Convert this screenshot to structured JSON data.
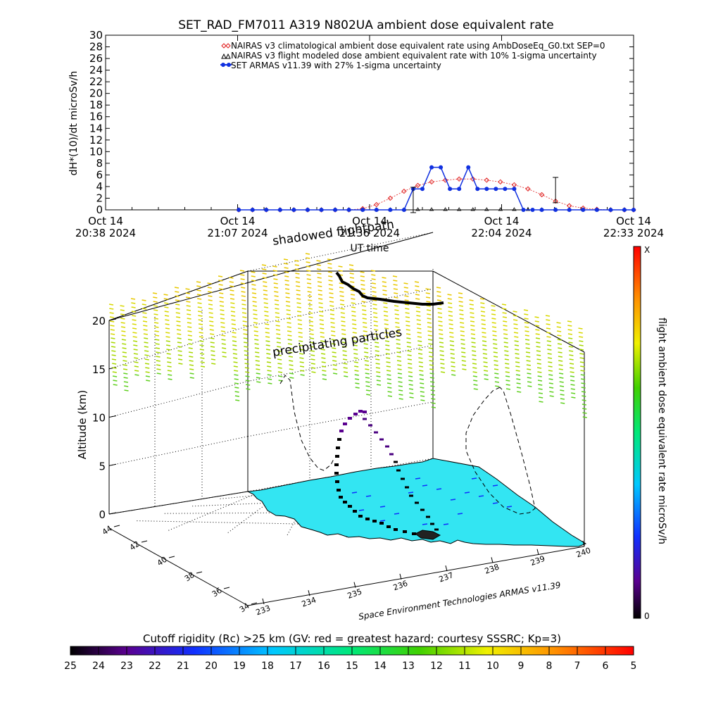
{
  "chart_data": [
    {
      "type": "line",
      "title": "SET_RAD_FM7011  A319 N802UA ambient dose equivalent rate",
      "xlabel": "UT time",
      "ylabel": "dH*(10)/dt microSv/h",
      "ylim": [
        0,
        30
      ],
      "y_ticks": [
        "0",
        "2",
        "4",
        "6",
        "8",
        "10",
        "12",
        "14",
        "16",
        "18",
        "20",
        "22",
        "24",
        "26",
        "28",
        "30"
      ],
      "x_tick_labels": [
        {
          "date": "Oct 14",
          "time": "20:38 2024"
        },
        {
          "date": "Oct 14",
          "time": "21:07 2024"
        },
        {
          "date": "Oct 14",
          "time": "21:36 2024"
        },
        {
          "date": "Oct 14",
          "time": "22:04 2024"
        },
        {
          "date": "Oct 14",
          "time": "22:33 2024"
        }
      ],
      "legend_position": "top-center",
      "series": [
        {
          "name": "NAIRAS v3 climatological ambient dose equivalent rate using AmbDoseEq_G0.txt SEP=0",
          "color": "#e02020",
          "marker": "diamond",
          "x": [
            "21:07",
            "21:10",
            "21:13",
            "21:16",
            "21:19",
            "21:22",
            "21:25",
            "21:28",
            "21:31",
            "21:34",
            "21:37",
            "21:40",
            "21:43",
            "21:46",
            "21:49",
            "21:52",
            "21:55",
            "21:58",
            "22:01",
            "22:04",
            "22:07",
            "22:10",
            "22:13",
            "22:16",
            "22:19",
            "22:22",
            "22:25",
            "22:28",
            "22:31",
            "22:33"
          ],
          "values": [
            0,
            0,
            0,
            0,
            0,
            0,
            0,
            0,
            0,
            0.2,
            0.9,
            2.0,
            3.2,
            4.2,
            4.8,
            5.1,
            5.3,
            5.3,
            5.1,
            4.8,
            4.3,
            3.6,
            2.6,
            1.5,
            0.7,
            0.3,
            0.1,
            0,
            0,
            0
          ]
        },
        {
          "name": "NAIRAS v3 flight modeled dose ambient equivalent rate with 10% 1-sigma uncertainty",
          "color": "#000000",
          "marker": "triangle",
          "x": [
            "21:07",
            "21:10",
            "21:13",
            "21:16",
            "21:19",
            "21:22",
            "21:25",
            "21:28",
            "21:31",
            "21:34",
            "21:37",
            "21:40",
            "21:43",
            "21:46",
            "21:49",
            "21:52",
            "21:55",
            "21:58",
            "22:01",
            "22:04",
            "22:07",
            "22:10",
            "22:13",
            "22:16",
            "22:19",
            "22:22",
            "22:25",
            "22:28",
            "22:31",
            "22:33"
          ],
          "values": [
            0,
            0,
            0,
            0,
            0,
            0,
            0,
            0,
            0,
            0,
            0,
            0,
            0,
            0,
            0,
            0,
            0,
            0,
            0,
            0,
            0,
            0,
            0,
            0,
            0,
            0,
            0,
            0,
            0,
            0
          ]
        },
        {
          "name": "SET ARMAS v11.39 with 27% 1-sigma uncertainty",
          "color": "#1030e0",
          "marker": "circle",
          "x": [
            "21:07",
            "21:10",
            "21:13",
            "21:16",
            "21:19",
            "21:22",
            "21:25",
            "21:28",
            "21:31",
            "21:34",
            "21:37",
            "21:40",
            "21:43",
            "21:45",
            "21:47",
            "21:49",
            "21:51",
            "21:53",
            "21:55",
            "21:57",
            "21:59",
            "22:01",
            "22:03",
            "22:05",
            "22:07",
            "22:09",
            "22:11",
            "22:13",
            "22:16",
            "22:19",
            "22:22",
            "22:25",
            "22:28",
            "22:31",
            "22:33"
          ],
          "values": [
            0,
            0,
            0,
            0,
            0,
            0,
            0,
            0,
            0,
            0,
            0,
            0,
            0,
            3.6,
            3.6,
            7.3,
            7.3,
            3.6,
            3.6,
            7.3,
            3.6,
            3.6,
            3.6,
            3.6,
            3.6,
            0,
            0,
            0,
            0,
            0,
            0,
            0,
            0,
            0,
            0
          ]
        }
      ]
    },
    {
      "type": "scatter",
      "zlabel": "Altitude (km)",
      "z_ticks": [
        "0",
        "5",
        "10",
        "15",
        "20"
      ],
      "lat_ticks": [
        "44",
        "42",
        "40",
        "38",
        "36",
        "34"
      ],
      "lon_ticks": [
        "233",
        "234",
        "235",
        "236",
        "237",
        "238",
        "239",
        "240"
      ],
      "annotations": [
        "shadowed flightpath",
        "precipitating particles"
      ],
      "credit": "Space Environment Technologies ARMAS v11.39",
      "side_colorbar": {
        "label": "flight ambient dose equivalent rate microSv/h",
        "max_label": "X",
        "min_label": "0"
      },
      "bottom_colorbar": {
        "label": "Cutoff rigidity (Rc) >25 km (GV: red = greatest hazard; courtesy SSSRC; Kp=3)",
        "ticks": [
          "25",
          "24",
          "23",
          "22",
          "21",
          "20",
          "19",
          "18",
          "17",
          "16",
          "15",
          "14",
          "13",
          "12",
          "11",
          "10",
          "9",
          "8",
          "7",
          "6",
          "5"
        ]
      },
      "land_color": "#33e5f2"
    }
  ]
}
